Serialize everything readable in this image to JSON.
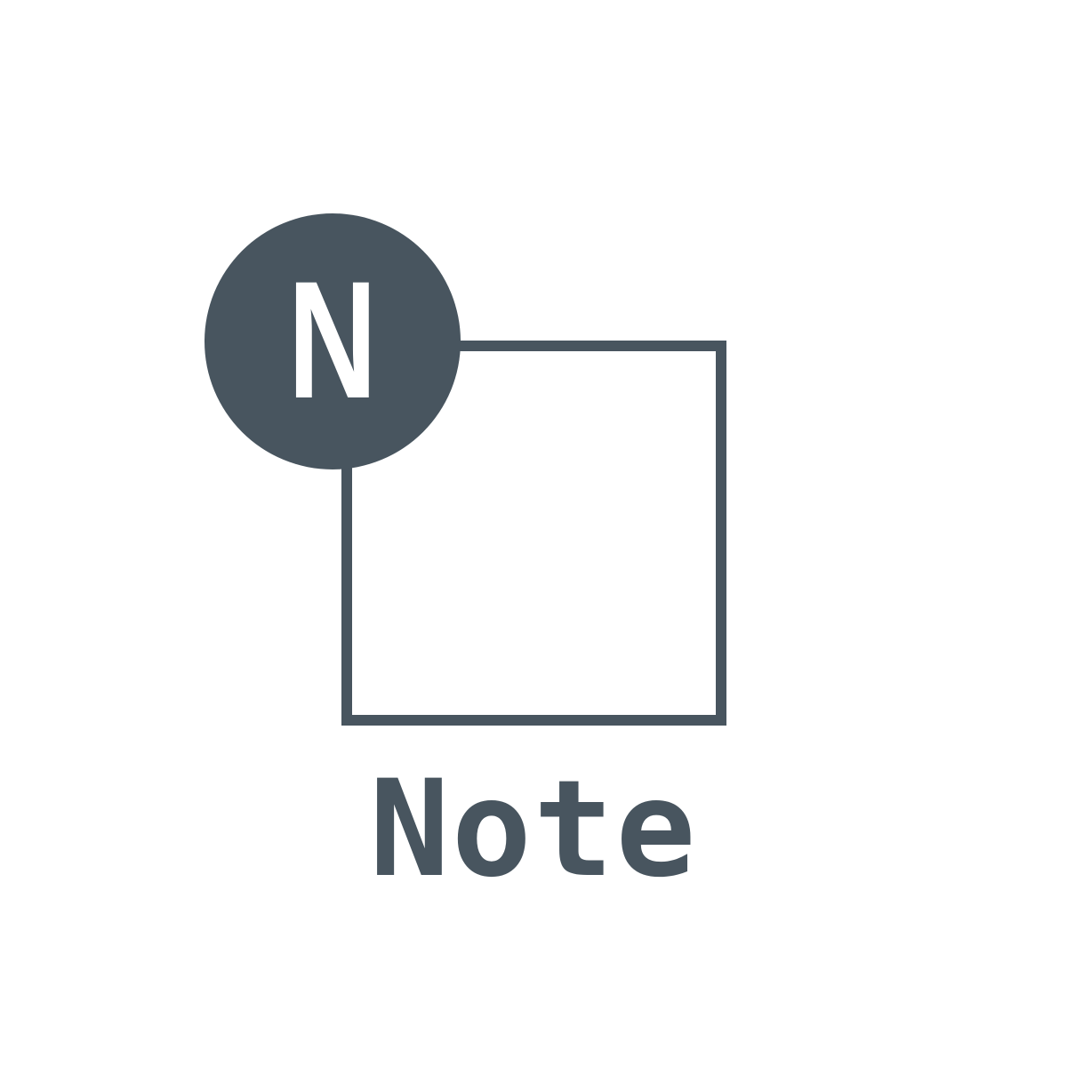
{
  "icon": {
    "name": "note-icon",
    "badge_letter": "N",
    "caption": "Note"
  },
  "colors": {
    "primary": "#48555f",
    "background": "#ffffff",
    "badge_text": "#ffffff"
  }
}
